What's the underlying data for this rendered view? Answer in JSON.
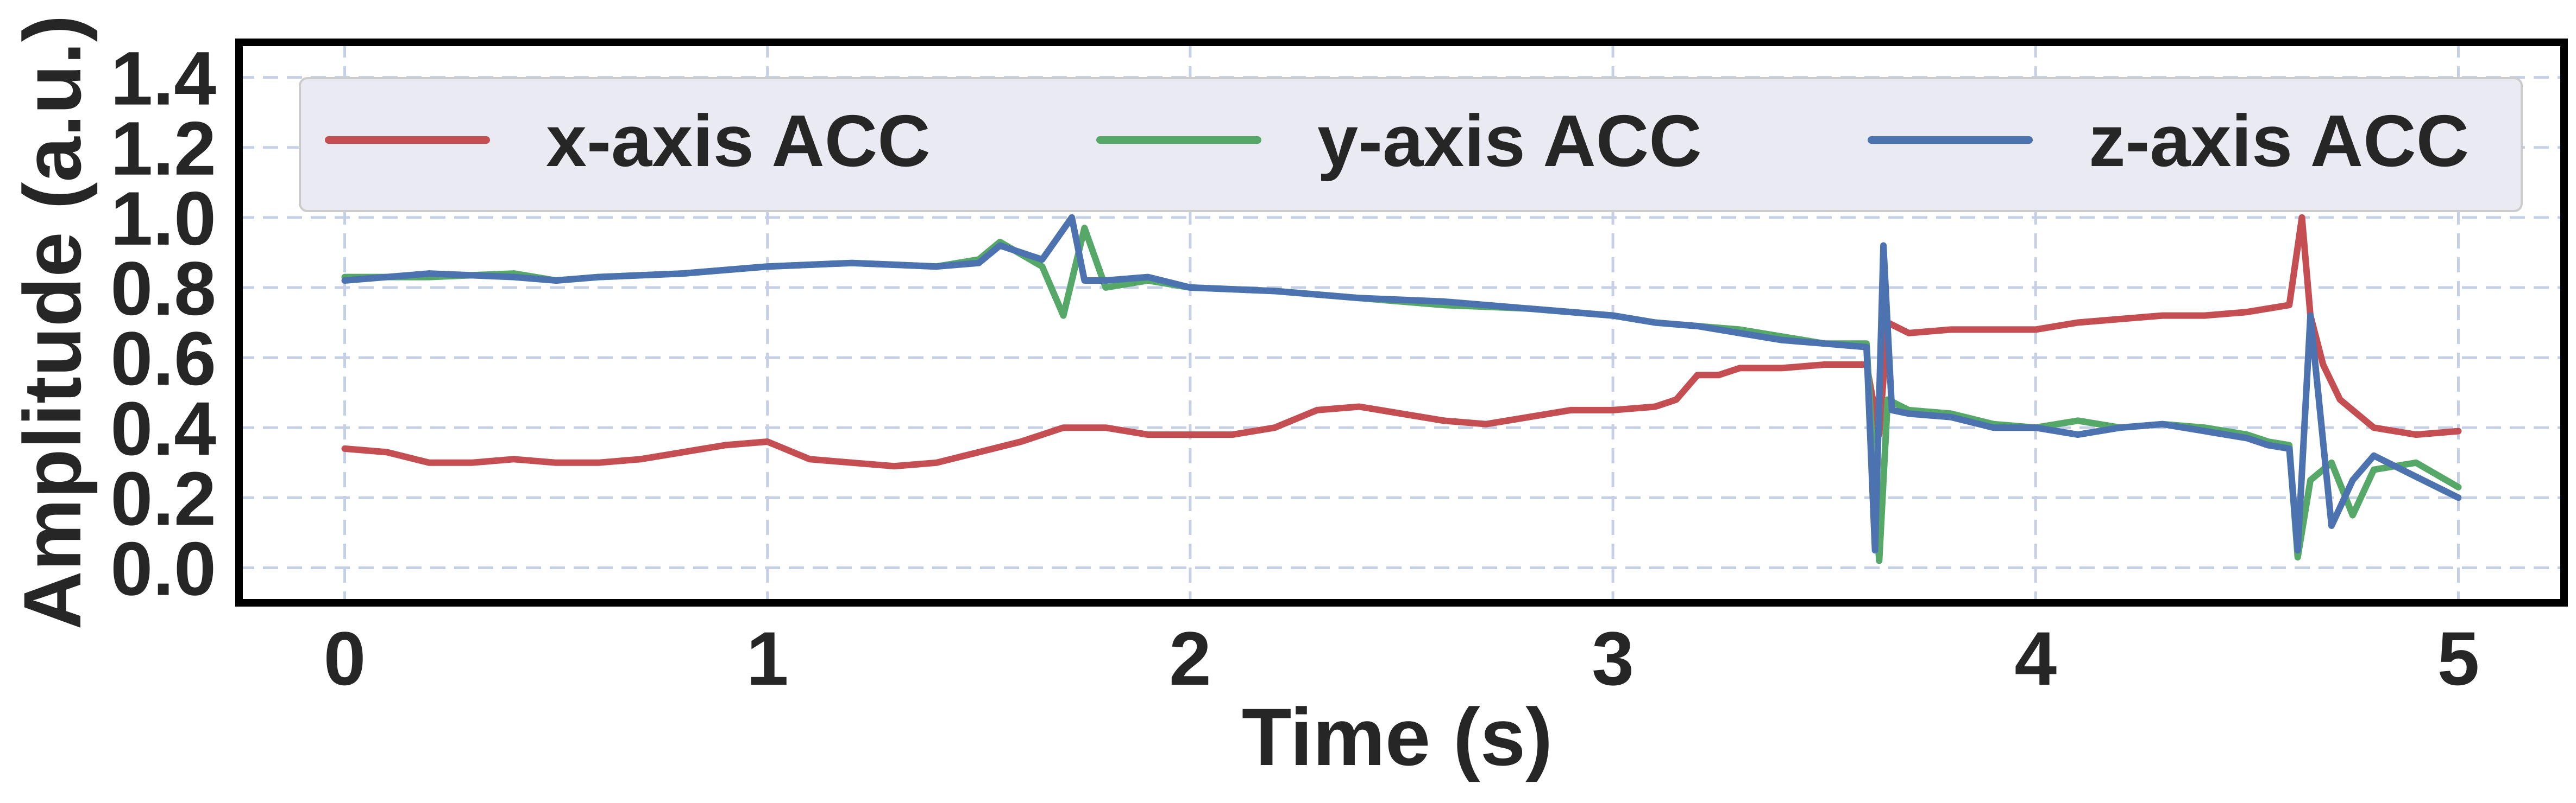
{
  "chart_data": {
    "type": "line",
    "xlabel": "Time (s)",
    "ylabel": "Amplitude (a.u.)",
    "xlim": [
      -0.25,
      5.25
    ],
    "ylim": [
      -0.1,
      1.5
    ],
    "x_ticks": [
      0,
      1,
      2,
      3,
      4,
      5
    ],
    "x_tick_labels": [
      "0",
      "1",
      "2",
      "3",
      "4",
      "5"
    ],
    "y_ticks": [
      0.0,
      0.2,
      0.4,
      0.6,
      0.8,
      1.0,
      1.2,
      1.4
    ],
    "y_tick_labels": [
      "0.0",
      "0.2",
      "0.4",
      "0.6",
      "0.8",
      "1.0",
      "1.2",
      "1.4"
    ],
    "grid": true,
    "legend_position": "top",
    "legend_columns": 3,
    "series": [
      {
        "name": "x-axis ACC",
        "color": "#c44e52",
        "x": [
          0,
          0.1,
          0.2,
          0.3,
          0.4,
          0.5,
          0.6,
          0.7,
          0.8,
          0.9,
          1.0,
          1.1,
          1.2,
          1.3,
          1.4,
          1.5,
          1.6,
          1.7,
          1.8,
          1.9,
          2.0,
          2.1,
          2.2,
          2.3,
          2.4,
          2.5,
          2.6,
          2.7,
          2.8,
          2.9,
          3.0,
          3.1,
          3.15,
          3.2,
          3.25,
          3.3,
          3.4,
          3.5,
          3.6,
          3.63,
          3.65,
          3.7,
          3.8,
          3.9,
          4.0,
          4.1,
          4.2,
          4.3,
          4.4,
          4.5,
          4.6,
          4.63,
          4.65,
          4.68,
          4.72,
          4.8,
          4.9,
          5.0
        ],
        "y": [
          0.34,
          0.33,
          0.3,
          0.3,
          0.31,
          0.3,
          0.3,
          0.31,
          0.33,
          0.35,
          0.36,
          0.31,
          0.3,
          0.29,
          0.3,
          0.33,
          0.36,
          0.4,
          0.4,
          0.38,
          0.38,
          0.38,
          0.4,
          0.45,
          0.46,
          0.44,
          0.42,
          0.41,
          0.43,
          0.45,
          0.45,
          0.46,
          0.48,
          0.55,
          0.55,
          0.57,
          0.57,
          0.58,
          0.58,
          0.38,
          0.7,
          0.67,
          0.68,
          0.68,
          0.68,
          0.7,
          0.71,
          0.72,
          0.72,
          0.73,
          0.75,
          1.0,
          0.72,
          0.58,
          0.48,
          0.4,
          0.38,
          0.39
        ]
      },
      {
        "name": "y-axis ACC",
        "color": "#55a868",
        "x": [
          0,
          0.2,
          0.4,
          0.5,
          0.6,
          0.8,
          1.0,
          1.2,
          1.4,
          1.5,
          1.55,
          1.65,
          1.7,
          1.75,
          1.8,
          1.9,
          2.0,
          2.2,
          2.4,
          2.6,
          2.8,
          3.0,
          3.1,
          3.2,
          3.3,
          3.4,
          3.5,
          3.6,
          3.63,
          3.65,
          3.7,
          3.8,
          3.9,
          4.0,
          4.1,
          4.2,
          4.3,
          4.4,
          4.5,
          4.55,
          4.6,
          4.62,
          4.65,
          4.7,
          4.75,
          4.8,
          4.9,
          5.0
        ],
        "y": [
          0.83,
          0.83,
          0.84,
          0.82,
          0.83,
          0.84,
          0.86,
          0.87,
          0.86,
          0.88,
          0.93,
          0.86,
          0.72,
          0.97,
          0.8,
          0.82,
          0.8,
          0.79,
          0.77,
          0.75,
          0.74,
          0.72,
          0.7,
          0.69,
          0.68,
          0.66,
          0.64,
          0.64,
          0.02,
          0.48,
          0.45,
          0.44,
          0.41,
          0.4,
          0.42,
          0.4,
          0.41,
          0.4,
          0.38,
          0.36,
          0.35,
          0.03,
          0.25,
          0.3,
          0.15,
          0.28,
          0.3,
          0.23
        ]
      },
      {
        "name": "z-axis ACC",
        "color": "#4c72b0",
        "x": [
          0,
          0.2,
          0.4,
          0.5,
          0.6,
          0.8,
          1.0,
          1.2,
          1.4,
          1.5,
          1.55,
          1.65,
          1.72,
          1.75,
          1.8,
          1.9,
          2.0,
          2.2,
          2.4,
          2.6,
          2.8,
          3.0,
          3.1,
          3.2,
          3.3,
          3.4,
          3.5,
          3.6,
          3.62,
          3.64,
          3.66,
          3.7,
          3.8,
          3.9,
          4.0,
          4.1,
          4.2,
          4.3,
          4.4,
          4.5,
          4.55,
          4.6,
          4.62,
          4.65,
          4.7,
          4.75,
          4.8,
          4.9,
          5.0
        ],
        "y": [
          0.82,
          0.84,
          0.83,
          0.82,
          0.83,
          0.84,
          0.86,
          0.87,
          0.86,
          0.87,
          0.92,
          0.88,
          1.0,
          0.82,
          0.82,
          0.83,
          0.8,
          0.79,
          0.77,
          0.76,
          0.74,
          0.72,
          0.7,
          0.69,
          0.67,
          0.65,
          0.64,
          0.63,
          0.05,
          0.92,
          0.45,
          0.44,
          0.43,
          0.4,
          0.4,
          0.38,
          0.4,
          0.41,
          0.39,
          0.37,
          0.35,
          0.34,
          0.05,
          0.72,
          0.12,
          0.25,
          0.32,
          0.26,
          0.2
        ]
      }
    ]
  }
}
